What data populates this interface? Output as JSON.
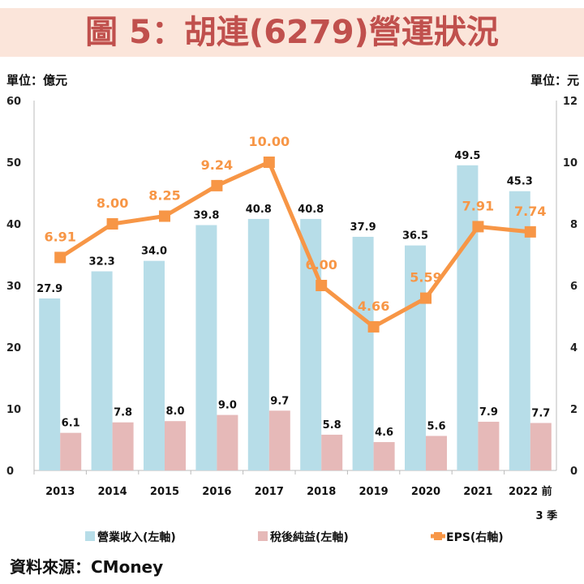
{
  "title": "圖 5：胡連(6279)營運狀況",
  "left_unit": "單位：億元",
  "right_unit": "單位：元",
  "source": "資料來源：CMoney",
  "chart_data": {
    "type": "bar+line",
    "categories": [
      "2013",
      "2014",
      "2015",
      "2016",
      "2017",
      "2018",
      "2019",
      "2020",
      "2021",
      "2022 前|3 季"
    ],
    "series": [
      {
        "name": "營業收入(左軸)",
        "axis": "left",
        "type": "bar",
        "color": "#b7dde8",
        "values": [
          27.9,
          32.3,
          34.0,
          39.8,
          40.8,
          40.8,
          37.9,
          36.5,
          49.5,
          45.3
        ]
      },
      {
        "name": "稅後純益(左軸)",
        "axis": "left",
        "type": "bar",
        "color": "#e6b9b8",
        "values": [
          6.1,
          7.8,
          8.0,
          9.0,
          9.7,
          5.8,
          4.6,
          5.6,
          7.9,
          7.7
        ]
      },
      {
        "name": "EPS(右軸)",
        "axis": "right",
        "type": "line",
        "color": "#f79646",
        "values": [
          6.91,
          8.0,
          8.25,
          9.24,
          10.0,
          6.0,
          4.66,
          5.59,
          7.91,
          7.74
        ]
      }
    ],
    "left_axis": {
      "ylim": [
        0,
        60
      ],
      "ticks": [
        0,
        10,
        20,
        30,
        40,
        50,
        60
      ]
    },
    "right_axis": {
      "ylim": [
        0,
        12
      ],
      "ticks": [
        0,
        2,
        4,
        6,
        8,
        10,
        12
      ]
    },
    "legend": "bottom"
  }
}
